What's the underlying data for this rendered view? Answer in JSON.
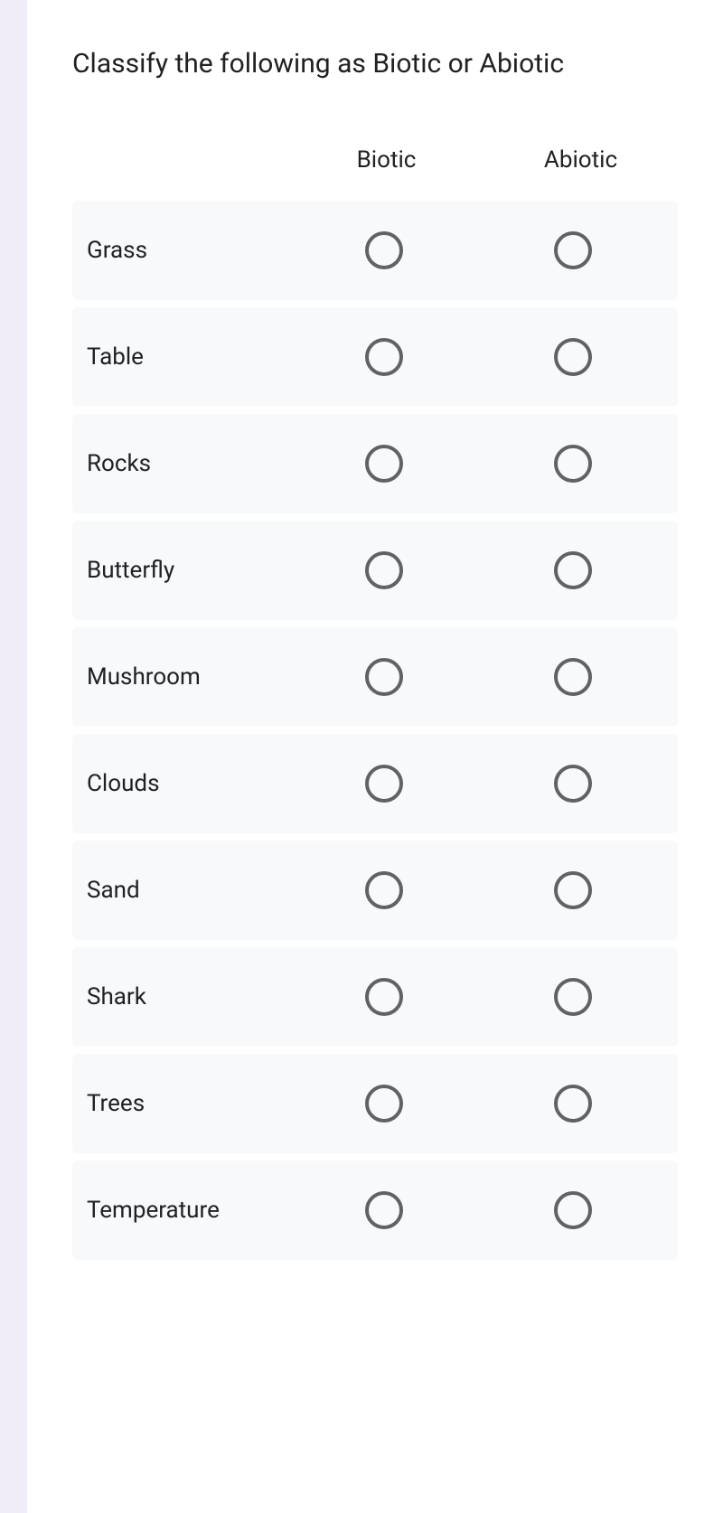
{
  "question": {
    "title": "Classify the following as Biotic or Abiotic"
  },
  "columns": {
    "col1": "Biotic",
    "col2": "Abiotic"
  },
  "rows": [
    {
      "label": "Grass"
    },
    {
      "label": "Table"
    },
    {
      "label": "Rocks"
    },
    {
      "label": "Butterfly"
    },
    {
      "label": "Mushroom"
    },
    {
      "label": "Clouds"
    },
    {
      "label": "Sand"
    },
    {
      "label": "Shark"
    },
    {
      "label": "Trees"
    },
    {
      "label": "Temperature"
    }
  ],
  "styling": {
    "background_color": "#f0ecf8",
    "form_background": "#ffffff",
    "row_background": "#f8f9fa",
    "text_color": "#202124",
    "radio_border_color": "#5f6368",
    "title_fontsize": 30,
    "label_fontsize": 26,
    "radio_size": 42,
    "radio_border_width": 4
  }
}
